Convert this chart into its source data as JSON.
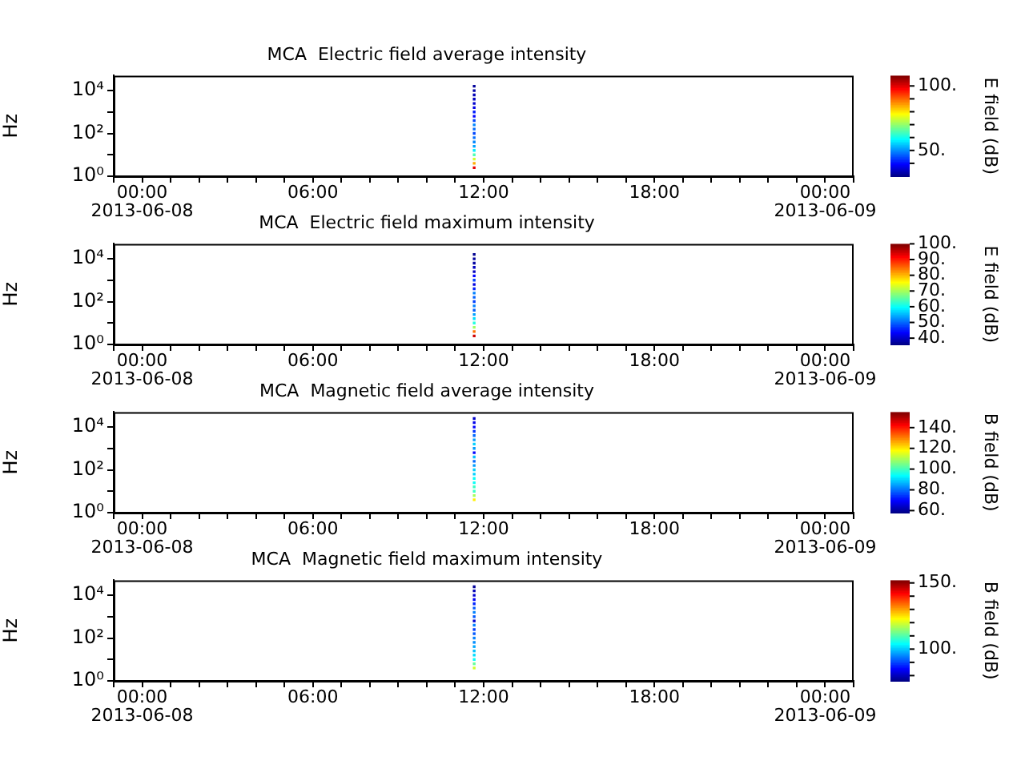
{
  "chart_data": [
    {
      "type": "scatter",
      "title": "MCA  Electric field average intensity",
      "ylabel": "Hz",
      "clabel": "E field (dB)",
      "marker": "square",
      "legend": false,
      "grid": false,
      "log": "y",
      "xlim": [
        "2013-06-07T23:00",
        "2013-06-09T01:00"
      ],
      "xticks": [
        {
          "value": "2013-06-07T23:00",
          "label": null
        },
        {
          "value": "2013-06-08T00:00",
          "label": "00:00\n2013-06-08"
        },
        {
          "value": "2013-06-08T01:00",
          "label": null
        },
        {
          "value": "2013-06-08T02:00",
          "label": null
        },
        {
          "value": "2013-06-08T03:00",
          "label": null
        },
        {
          "value": "2013-06-08T04:00",
          "label": null
        },
        {
          "value": "2013-06-08T05:00",
          "label": null
        },
        {
          "value": "2013-06-08T06:00",
          "label": "06:00"
        },
        {
          "value": "2013-06-08T07:00",
          "label": null
        },
        {
          "value": "2013-06-08T08:00",
          "label": null
        },
        {
          "value": "2013-06-08T09:00",
          "label": null
        },
        {
          "value": "2013-06-08T10:00",
          "label": null
        },
        {
          "value": "2013-06-08T11:00",
          "label": null
        },
        {
          "value": "2013-06-08T12:00",
          "label": "12:00"
        },
        {
          "value": "2013-06-08T13:00",
          "label": null
        },
        {
          "value": "2013-06-08T14:00",
          "label": null
        },
        {
          "value": "2013-06-08T15:00",
          "label": null
        },
        {
          "value": "2013-06-08T16:00",
          "label": null
        },
        {
          "value": "2013-06-08T17:00",
          "label": null
        },
        {
          "value": "2013-06-08T18:00",
          "label": "18:00"
        },
        {
          "value": "2013-06-08T19:00",
          "label": null
        },
        {
          "value": "2013-06-08T20:00",
          "label": null
        },
        {
          "value": "2013-06-08T21:00",
          "label": null
        },
        {
          "value": "2013-06-08T22:00",
          "label": null
        },
        {
          "value": "2013-06-08T23:00",
          "label": null
        },
        {
          "value": "2013-06-09T00:00",
          "label": "00:00\n2013-06-09"
        },
        {
          "value": "2013-06-09T01:00",
          "label": null
        }
      ],
      "ylim": [
        1,
        50000
      ],
      "yticks": [
        {
          "value": 1,
          "label": "10⁰"
        },
        {
          "value": 10,
          "label": null
        },
        {
          "value": 100,
          "label": "10²"
        },
        {
          "value": 1000,
          "label": null
        },
        {
          "value": 10000,
          "label": "10⁴"
        }
      ],
      "clim": [
        30,
        108
      ],
      "cticks": [
        {
          "value": 40,
          "label": null
        },
        {
          "value": 50,
          "label": "50."
        },
        {
          "value": 60,
          "label": null
        },
        {
          "value": 70,
          "label": null
        },
        {
          "value": 80,
          "label": null
        },
        {
          "value": 90,
          "label": null
        },
        {
          "value": 100,
          "label": "100."
        }
      ],
      "x": [
        "2013-06-08T11:40",
        "2013-06-08T11:40",
        "2013-06-08T11:40",
        "2013-06-08T11:40",
        "2013-06-08T11:40",
        "2013-06-08T11:40",
        "2013-06-08T11:40",
        "2013-06-08T11:40",
        "2013-06-08T11:40",
        "2013-06-08T11:40",
        "2013-06-08T11:40",
        "2013-06-08T11:40",
        "2013-06-08T11:40",
        "2013-06-08T11:40",
        "2013-06-08T11:40",
        "2013-06-08T11:40",
        "2013-06-08T11:40",
        "2013-06-08T11:40",
        "2013-06-08T11:40",
        "2013-06-08T11:40"
      ],
      "values": [
        2.5,
        4,
        6.3,
        10,
        16,
        25,
        40,
        63,
        100,
        160,
        250,
        400,
        630,
        1000,
        1600,
        2500,
        4000,
        6300,
        10000,
        16000
      ],
      "cvalues": [
        100,
        85,
        75,
        65,
        58,
        52,
        50,
        48,
        45,
        48,
        50,
        45,
        40,
        42,
        38,
        36,
        35,
        34,
        33,
        32
      ]
    },
    {
      "type": "scatter",
      "title": "MCA  Electric field maximum intensity",
      "ylabel": "Hz",
      "clabel": "E field (dB)",
      "marker": "square",
      "legend": false,
      "grid": false,
      "log": "y",
      "xlim": [
        "2013-06-07T23:00",
        "2013-06-09T01:00"
      ],
      "xticks": [
        {
          "value": "2013-06-07T23:00",
          "label": null
        },
        {
          "value": "2013-06-08T00:00",
          "label": "00:00\n2013-06-08"
        },
        {
          "value": "2013-06-08T01:00",
          "label": null
        },
        {
          "value": "2013-06-08T02:00",
          "label": null
        },
        {
          "value": "2013-06-08T03:00",
          "label": null
        },
        {
          "value": "2013-06-08T04:00",
          "label": null
        },
        {
          "value": "2013-06-08T05:00",
          "label": null
        },
        {
          "value": "2013-06-08T06:00",
          "label": "06:00"
        },
        {
          "value": "2013-06-08T07:00",
          "label": null
        },
        {
          "value": "2013-06-08T08:00",
          "label": null
        },
        {
          "value": "2013-06-08T09:00",
          "label": null
        },
        {
          "value": "2013-06-08T10:00",
          "label": null
        },
        {
          "value": "2013-06-08T11:00",
          "label": null
        },
        {
          "value": "2013-06-08T12:00",
          "label": "12:00"
        },
        {
          "value": "2013-06-08T13:00",
          "label": null
        },
        {
          "value": "2013-06-08T14:00",
          "label": null
        },
        {
          "value": "2013-06-08T15:00",
          "label": null
        },
        {
          "value": "2013-06-08T16:00",
          "label": null
        },
        {
          "value": "2013-06-08T17:00",
          "label": null
        },
        {
          "value": "2013-06-08T18:00",
          "label": "18:00"
        },
        {
          "value": "2013-06-08T19:00",
          "label": null
        },
        {
          "value": "2013-06-08T20:00",
          "label": null
        },
        {
          "value": "2013-06-08T21:00",
          "label": null
        },
        {
          "value": "2013-06-08T22:00",
          "label": null
        },
        {
          "value": "2013-06-08T23:00",
          "label": null
        },
        {
          "value": "2013-06-09T00:00",
          "label": "00:00\n2013-06-09"
        },
        {
          "value": "2013-06-09T01:00",
          "label": null
        }
      ],
      "ylim": [
        1,
        50000
      ],
      "yticks": [
        {
          "value": 1,
          "label": "10⁰"
        },
        {
          "value": 10,
          "label": null
        },
        {
          "value": 100,
          "label": "10²"
        },
        {
          "value": 1000,
          "label": null
        },
        {
          "value": 10000,
          "label": "10⁴"
        }
      ],
      "clim": [
        36,
        100
      ],
      "cticks": [
        {
          "value": 40,
          "label": "40."
        },
        {
          "value": 50,
          "label": "50."
        },
        {
          "value": 60,
          "label": "60."
        },
        {
          "value": 70,
          "label": "70."
        },
        {
          "value": 80,
          "label": "80."
        },
        {
          "value": 90,
          "label": "90."
        },
        {
          "value": 100,
          "label": "100."
        }
      ],
      "x": [
        "2013-06-08T11:40",
        "2013-06-08T11:40",
        "2013-06-08T11:40",
        "2013-06-08T11:40",
        "2013-06-08T11:40",
        "2013-06-08T11:40",
        "2013-06-08T11:40",
        "2013-06-08T11:40",
        "2013-06-08T11:40",
        "2013-06-08T11:40",
        "2013-06-08T11:40",
        "2013-06-08T11:40",
        "2013-06-08T11:40",
        "2013-06-08T11:40",
        "2013-06-08T11:40",
        "2013-06-08T11:40",
        "2013-06-08T11:40",
        "2013-06-08T11:40",
        "2013-06-08T11:40",
        "2013-06-08T11:40"
      ],
      "values": [
        2.5,
        4,
        6.3,
        10,
        16,
        25,
        40,
        63,
        100,
        160,
        250,
        400,
        630,
        1000,
        1600,
        2500,
        4000,
        6300,
        10000,
        16000
      ],
      "cvalues": [
        95,
        85,
        70,
        62,
        58,
        54,
        50,
        52,
        48,
        50,
        52,
        46,
        42,
        48,
        44,
        40,
        40,
        38,
        38,
        37
      ]
    },
    {
      "type": "scatter",
      "title": "MCA  Magnetic field average intensity",
      "ylabel": "Hz",
      "clabel": "B field (dB)",
      "marker": "square",
      "legend": false,
      "grid": false,
      "log": "y",
      "xlim": [
        "2013-06-07T23:00",
        "2013-06-09T01:00"
      ],
      "xticks": [
        {
          "value": "2013-06-07T23:00",
          "label": null
        },
        {
          "value": "2013-06-08T00:00",
          "label": "00:00\n2013-06-08"
        },
        {
          "value": "2013-06-08T01:00",
          "label": null
        },
        {
          "value": "2013-06-08T02:00",
          "label": null
        },
        {
          "value": "2013-06-08T03:00",
          "label": null
        },
        {
          "value": "2013-06-08T04:00",
          "label": null
        },
        {
          "value": "2013-06-08T05:00",
          "label": null
        },
        {
          "value": "2013-06-08T06:00",
          "label": "06:00"
        },
        {
          "value": "2013-06-08T07:00",
          "label": null
        },
        {
          "value": "2013-06-08T08:00",
          "label": null
        },
        {
          "value": "2013-06-08T09:00",
          "label": null
        },
        {
          "value": "2013-06-08T10:00",
          "label": null
        },
        {
          "value": "2013-06-08T11:00",
          "label": null
        },
        {
          "value": "2013-06-08T12:00",
          "label": "12:00"
        },
        {
          "value": "2013-06-08T13:00",
          "label": null
        },
        {
          "value": "2013-06-08T14:00",
          "label": null
        },
        {
          "value": "2013-06-08T15:00",
          "label": null
        },
        {
          "value": "2013-06-08T16:00",
          "label": null
        },
        {
          "value": "2013-06-08T17:00",
          "label": null
        },
        {
          "value": "2013-06-08T18:00",
          "label": "18:00"
        },
        {
          "value": "2013-06-08T19:00",
          "label": null
        },
        {
          "value": "2013-06-08T20:00",
          "label": null
        },
        {
          "value": "2013-06-08T21:00",
          "label": null
        },
        {
          "value": "2013-06-08T22:00",
          "label": null
        },
        {
          "value": "2013-06-08T23:00",
          "label": null
        },
        {
          "value": "2013-06-09T00:00",
          "label": "00:00\n2013-06-09"
        },
        {
          "value": "2013-06-09T01:00",
          "label": null
        }
      ],
      "ylim": [
        1,
        50000
      ],
      "yticks": [
        {
          "value": 1,
          "label": "10⁰"
        },
        {
          "value": 10,
          "label": null
        },
        {
          "value": 100,
          "label": "10²"
        },
        {
          "value": 1000,
          "label": null
        },
        {
          "value": 10000,
          "label": "10⁴"
        }
      ],
      "clim": [
        58,
        155
      ],
      "cticks": [
        {
          "value": 60,
          "label": "60."
        },
        {
          "value": 80,
          "label": "80."
        },
        {
          "value": 100,
          "label": "100."
        },
        {
          "value": 120,
          "label": "120."
        },
        {
          "value": 140,
          "label": "140."
        }
      ],
      "x": [
        "2013-06-08T11:40",
        "2013-06-08T11:40",
        "2013-06-08T11:40",
        "2013-06-08T11:40",
        "2013-06-08T11:40",
        "2013-06-08T11:40",
        "2013-06-08T11:40",
        "2013-06-08T11:40",
        "2013-06-08T11:40",
        "2013-06-08T11:40",
        "2013-06-08T11:40",
        "2013-06-08T11:40",
        "2013-06-08T11:40",
        "2013-06-08T11:40",
        "2013-06-08T11:40",
        "2013-06-08T11:40",
        "2013-06-08T11:40",
        "2013-06-08T11:40",
        "2013-06-08T11:40",
        "2013-06-08T11:40"
      ],
      "values": [
        4,
        6.3,
        10,
        16,
        25,
        40,
        63,
        100,
        160,
        250,
        400,
        630,
        1000,
        1600,
        2500,
        4000,
        6300,
        10000,
        16000,
        25000
      ],
      "cvalues": [
        120,
        110,
        100,
        100,
        95,
        95,
        90,
        90,
        85,
        80,
        88,
        70,
        85,
        90,
        85,
        80,
        75,
        70,
        68,
        65
      ]
    },
    {
      "type": "scatter",
      "title": "MCA  Magnetic field maximum intensity",
      "ylabel": "Hz",
      "clabel": "B field (dB)",
      "marker": "square",
      "legend": false,
      "grid": false,
      "log": "y",
      "xlim": [
        "2013-06-07T23:00",
        "2013-06-09T01:00"
      ],
      "xticks": [
        {
          "value": "2013-06-07T23:00",
          "label": null
        },
        {
          "value": "2013-06-08T00:00",
          "label": "00:00\n2013-06-08"
        },
        {
          "value": "2013-06-08T01:00",
          "label": null
        },
        {
          "value": "2013-06-08T02:00",
          "label": null
        },
        {
          "value": "2013-06-08T03:00",
          "label": null
        },
        {
          "value": "2013-06-08T04:00",
          "label": null
        },
        {
          "value": "2013-06-08T05:00",
          "label": null
        },
        {
          "value": "2013-06-08T06:00",
          "label": "06:00"
        },
        {
          "value": "2013-06-08T07:00",
          "label": null
        },
        {
          "value": "2013-06-08T08:00",
          "label": null
        },
        {
          "value": "2013-06-08T09:00",
          "label": null
        },
        {
          "value": "2013-06-08T10:00",
          "label": null
        },
        {
          "value": "2013-06-08T11:00",
          "label": null
        },
        {
          "value": "2013-06-08T12:00",
          "label": "12:00"
        },
        {
          "value": "2013-06-08T13:00",
          "label": null
        },
        {
          "value": "2013-06-08T14:00",
          "label": null
        },
        {
          "value": "2013-06-08T15:00",
          "label": null
        },
        {
          "value": "2013-06-08T16:00",
          "label": null
        },
        {
          "value": "2013-06-08T17:00",
          "label": null
        },
        {
          "value": "2013-06-08T18:00",
          "label": "18:00"
        },
        {
          "value": "2013-06-08T19:00",
          "label": null
        },
        {
          "value": "2013-06-08T20:00",
          "label": null
        },
        {
          "value": "2013-06-08T21:00",
          "label": null
        },
        {
          "value": "2013-06-08T22:00",
          "label": null
        },
        {
          "value": "2013-06-08T23:00",
          "label": null
        },
        {
          "value": "2013-06-09T00:00",
          "label": "00:00\n2013-06-09"
        },
        {
          "value": "2013-06-09T01:00",
          "label": null
        }
      ],
      "ylim": [
        1,
        50000
      ],
      "yticks": [
        {
          "value": 1,
          "label": "10⁰"
        },
        {
          "value": 10,
          "label": null
        },
        {
          "value": 100,
          "label": "10²"
        },
        {
          "value": 1000,
          "label": null
        },
        {
          "value": 10000,
          "label": "10⁴"
        }
      ],
      "clim": [
        76,
        152
      ],
      "cticks": [
        {
          "value": 80,
          "label": null
        },
        {
          "value": 90,
          "label": null
        },
        {
          "value": 100,
          "label": "100."
        },
        {
          "value": 110,
          "label": null
        },
        {
          "value": 120,
          "label": null
        },
        {
          "value": 130,
          "label": null
        },
        {
          "value": 140,
          "label": null
        },
        {
          "value": 150,
          "label": "150."
        }
      ],
      "x": [
        "2013-06-08T11:40",
        "2013-06-08T11:40",
        "2013-06-08T11:40",
        "2013-06-08T11:40",
        "2013-06-08T11:40",
        "2013-06-08T11:40",
        "2013-06-08T11:40",
        "2013-06-08T11:40",
        "2013-06-08T11:40",
        "2013-06-08T11:40",
        "2013-06-08T11:40",
        "2013-06-08T11:40",
        "2013-06-08T11:40",
        "2013-06-08T11:40",
        "2013-06-08T11:40",
        "2013-06-08T11:40",
        "2013-06-08T11:40",
        "2013-06-08T11:40",
        "2013-06-08T11:40",
        "2013-06-08T11:40"
      ],
      "values": [
        4,
        6.3,
        10,
        16,
        25,
        40,
        63,
        100,
        160,
        250,
        400,
        630,
        1000,
        1600,
        2500,
        4000,
        6300,
        10000,
        16000,
        25000
      ],
      "cvalues": [
        120,
        112,
        105,
        102,
        100,
        98,
        96,
        95,
        92,
        90,
        95,
        82,
        92,
        95,
        92,
        88,
        85,
        82,
        80,
        78
      ]
    }
  ]
}
